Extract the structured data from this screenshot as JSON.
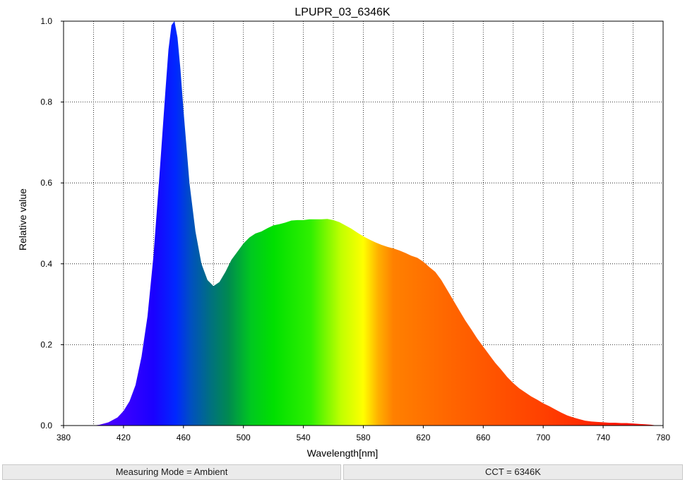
{
  "chart_data": {
    "type": "area",
    "title": "LPUPR_03_6346K",
    "xlabel": "Wavelength[nm]",
    "ylabel": "Relative value",
    "xlim": [
      380,
      780
    ],
    "ylim": [
      0,
      1.0
    ],
    "xticks": [
      "380",
      "420",
      "460",
      "500",
      "540",
      "580",
      "620",
      "660",
      "700",
      "740",
      "780"
    ],
    "yticks": [
      "0.0",
      "0.2",
      "0.4",
      "0.6",
      "0.8",
      "1.0"
    ],
    "grid": true,
    "fill": "wavelength spectrum colors",
    "series": [
      {
        "x": [
          380,
          400,
          404,
          410,
          416,
          420,
          424,
          428,
          432,
          436,
          440,
          444,
          448,
          450,
          452,
          454,
          456,
          458,
          460,
          464,
          468,
          472,
          476,
          480,
          484,
          488,
          492,
          496,
          500,
          504,
          508,
          512,
          516,
          520,
          524,
          528,
          532,
          536,
          540,
          544,
          548,
          552,
          556,
          560,
          564,
          568,
          572,
          576,
          580,
          584,
          588,
          592,
          596,
          600,
          604,
          608,
          612,
          616,
          620,
          624,
          628,
          632,
          636,
          640,
          644,
          648,
          652,
          656,
          660,
          664,
          668,
          672,
          676,
          680,
          684,
          688,
          692,
          696,
          700,
          704,
          708,
          712,
          716,
          720,
          724,
          728,
          732,
          736,
          740,
          744,
          748,
          752,
          756,
          760,
          764,
          768,
          772,
          776,
          780
        ],
        "values": [
          0.0,
          0.0,
          0.002,
          0.008,
          0.02,
          0.036,
          0.06,
          0.1,
          0.17,
          0.27,
          0.42,
          0.62,
          0.83,
          0.93,
          0.99,
          1.0,
          0.96,
          0.88,
          0.78,
          0.6,
          0.48,
          0.4,
          0.36,
          0.345,
          0.355,
          0.38,
          0.41,
          0.43,
          0.45,
          0.465,
          0.475,
          0.48,
          0.488,
          0.495,
          0.498,
          0.502,
          0.507,
          0.508,
          0.508,
          0.51,
          0.51,
          0.51,
          0.511,
          0.508,
          0.503,
          0.495,
          0.487,
          0.477,
          0.468,
          0.46,
          0.453,
          0.447,
          0.442,
          0.438,
          0.433,
          0.427,
          0.42,
          0.415,
          0.405,
          0.392,
          0.38,
          0.36,
          0.335,
          0.31,
          0.285,
          0.26,
          0.238,
          0.215,
          0.195,
          0.175,
          0.155,
          0.138,
          0.12,
          0.105,
          0.092,
          0.082,
          0.072,
          0.064,
          0.055,
          0.048,
          0.04,
          0.032,
          0.025,
          0.02,
          0.016,
          0.012,
          0.01,
          0.009,
          0.008,
          0.007,
          0.007,
          0.006,
          0.006,
          0.005,
          0.004,
          0.003,
          0.002,
          0.0,
          0.0
        ]
      }
    ]
  },
  "status": {
    "measuring_mode": "Measuring Mode = Ambient",
    "cct": "CCT = 6346K"
  }
}
